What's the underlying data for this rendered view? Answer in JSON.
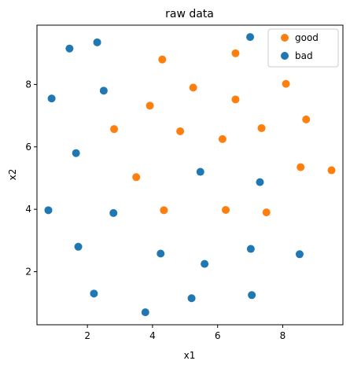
{
  "chart_data": {
    "type": "scatter",
    "title": "raw data",
    "xlabel": "x1",
    "ylabel": "x2",
    "xlim": [
      0.45,
      9.85
    ],
    "ylim": [
      0.3,
      9.9
    ],
    "xticks": [
      2,
      4,
      6,
      8
    ],
    "yticks": [
      2,
      4,
      6,
      8
    ],
    "grid": false,
    "legend_position": "top-right",
    "series": [
      {
        "name": "good",
        "color": "#ff7f0e",
        "points": [
          [
            4.3,
            8.8
          ],
          [
            6.55,
            9.0
          ],
          [
            8.1,
            8.02
          ],
          [
            5.25,
            7.9
          ],
          [
            3.92,
            7.32
          ],
          [
            6.55,
            7.52
          ],
          [
            2.82,
            6.57
          ],
          [
            4.85,
            6.5
          ],
          [
            7.35,
            6.6
          ],
          [
            8.72,
            6.88
          ],
          [
            6.15,
            6.25
          ],
          [
            3.5,
            5.03
          ],
          [
            8.55,
            5.35
          ],
          [
            9.5,
            5.25
          ],
          [
            4.35,
            3.97
          ],
          [
            6.25,
            3.98
          ],
          [
            7.5,
            3.9
          ]
        ]
      },
      {
        "name": "bad",
        "color": "#1f77b4",
        "points": [
          [
            1.45,
            9.15
          ],
          [
            2.3,
            9.35
          ],
          [
            7.0,
            9.52
          ],
          [
            0.9,
            7.55
          ],
          [
            2.5,
            7.8
          ],
          [
            1.65,
            5.8
          ],
          [
            5.47,
            5.2
          ],
          [
            7.3,
            4.87
          ],
          [
            0.8,
            3.97
          ],
          [
            2.8,
            3.88
          ],
          [
            1.72,
            2.8
          ],
          [
            4.25,
            2.58
          ],
          [
            5.6,
            2.25
          ],
          [
            7.02,
            2.73
          ],
          [
            8.52,
            2.56
          ],
          [
            2.2,
            1.3
          ],
          [
            5.2,
            1.15
          ],
          [
            7.05,
            1.25
          ],
          [
            3.78,
            0.7
          ]
        ]
      }
    ]
  }
}
